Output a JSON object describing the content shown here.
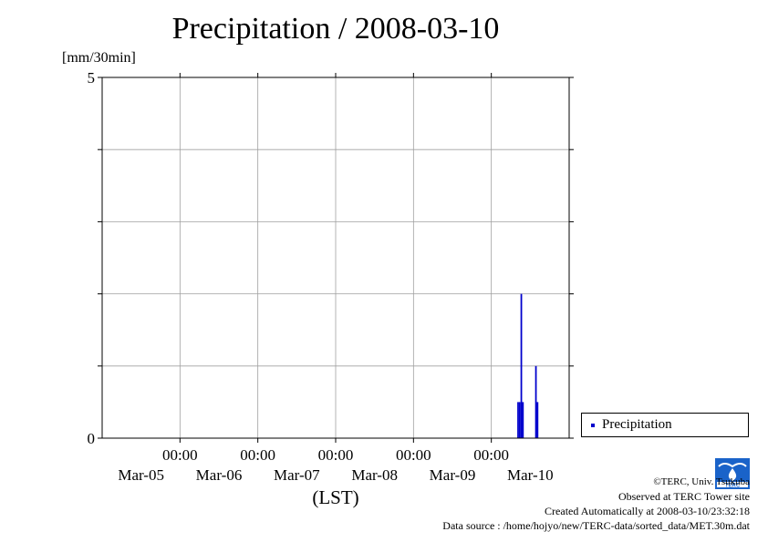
{
  "page": {
    "title": "Precipitation / 2008-03-10",
    "unit_label": "[mm/30min]"
  },
  "chart_data": {
    "type": "bar",
    "title": "Precipitation / 2008-03-10",
    "ylabel": "[mm/30min]",
    "xlabel": "(LST)",
    "ylim": [
      0,
      5
    ],
    "y_tick_labels": [
      "0",
      "5"
    ],
    "y_ticks": [
      0,
      1,
      2,
      3,
      4,
      5
    ],
    "xlim_hours": [
      0,
      144
    ],
    "x_ticks": [
      {
        "hour": 24,
        "time": "00:00",
        "date": "Mar-06"
      },
      {
        "hour": 48,
        "time": "00:00",
        "date": "Mar-07"
      },
      {
        "hour": 72,
        "time": "00:00",
        "date": "Mar-08"
      },
      {
        "hour": 96,
        "time": "00:00",
        "date": "Mar-09"
      },
      {
        "hour": 120,
        "time": "00:00",
        "date": "Mar-10"
      }
    ],
    "x_day_labels": [
      {
        "hour": 12,
        "date": "Mar-05"
      },
      {
        "hour": 36,
        "date": "Mar-06"
      },
      {
        "hour": 60,
        "date": "Mar-07"
      },
      {
        "hour": 84,
        "date": "Mar-08"
      },
      {
        "hour": 108,
        "date": "Mar-09"
      },
      {
        "hour": 132,
        "date": "Mar-10"
      }
    ],
    "grid": true,
    "bar_width_hours": 0.5,
    "series": [
      {
        "name": "Precipitation",
        "color": "#0000cc",
        "points": [
          {
            "x": 128.0,
            "y": 0.5
          },
          {
            "x": 128.5,
            "y": 0.5
          },
          {
            "x": 129.0,
            "y": 2.0
          },
          {
            "x": 129.5,
            "y": 0.5
          },
          {
            "x": 133.5,
            "y": 1.0
          },
          {
            "x": 134.0,
            "y": 0.5
          }
        ]
      }
    ],
    "legend": {
      "position": "right",
      "label": "Precipitation"
    }
  },
  "footer": {
    "copyright": "©TERC, Univ. Tsukuba",
    "observed": "Observed at TERC Tower site",
    "created": "Created Automatically at 2008-03-10/23:32:18",
    "source": "Data source : /home/hojyo/new/TERC-data/sorted_data/MET.30m.dat",
    "logo_text": "TERC"
  }
}
